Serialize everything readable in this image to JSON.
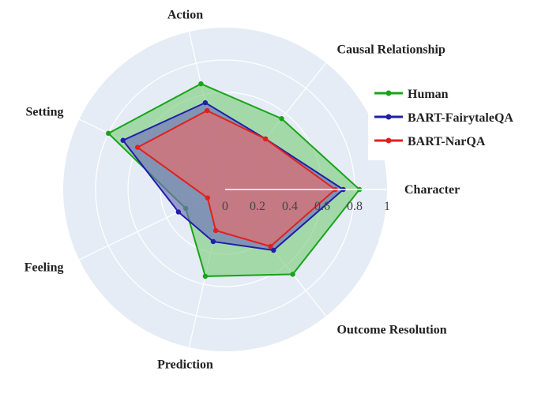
{
  "chart_data": {
    "type": "radar",
    "axes": [
      "Character",
      "Causal Relationship",
      "Action",
      "Setting",
      "Feeling",
      "Prediction",
      "Outcome Resolution"
    ],
    "radial_ticks": [
      "0",
      "0.2",
      "0.4",
      "0.6",
      "0.8",
      "1"
    ],
    "rlim": [
      0,
      1
    ],
    "legend_position": "right",
    "series": [
      {
        "name": "Human",
        "color": "#1aa31a",
        "fill": "#7fd07f",
        "values": [
          0.83,
          0.56,
          0.67,
          0.8,
          0.27,
          0.55,
          0.67
        ]
      },
      {
        "name": "BART-FairytaleQA",
        "color": "#1f1fa8",
        "fill": "#6f6fb8",
        "values": [
          0.73,
          0.4,
          0.55,
          0.7,
          0.32,
          0.33,
          0.48
        ]
      },
      {
        "name": "BART-NarQA",
        "color": "#e02020",
        "fill": "#e86a6a",
        "values": [
          0.68,
          0.4,
          0.5,
          0.6,
          0.12,
          0.26,
          0.45
        ]
      }
    ]
  }
}
